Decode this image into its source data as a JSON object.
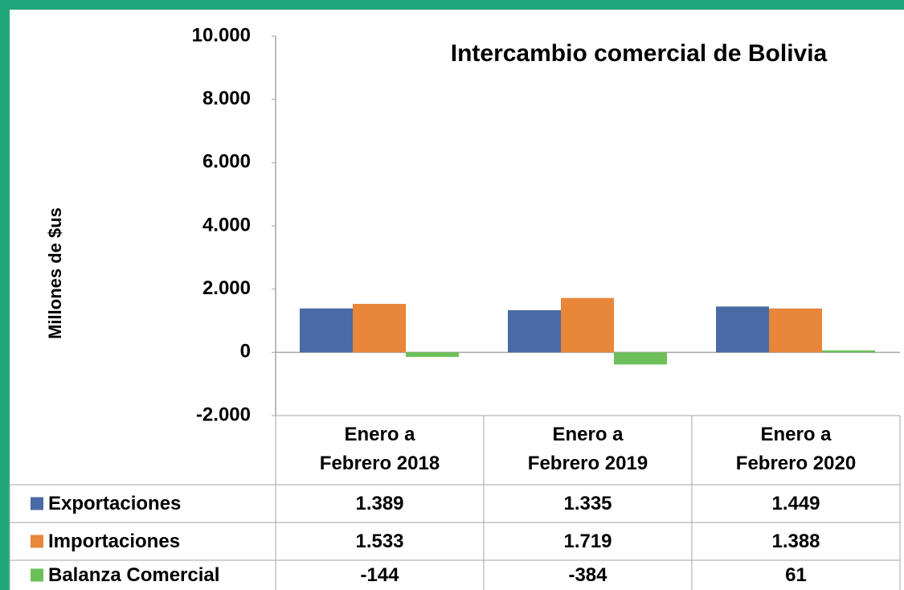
{
  "chart_data": {
    "type": "bar",
    "title": "Intercambio comercial de Bolivia",
    "y_label": "Millones de $us",
    "categories": [
      "Enero a\nFebrero 2018",
      "Enero a\nFebrero 2019",
      "Enero a\nFebrero 2020"
    ],
    "series": [
      {
        "name": "Exportaciones",
        "color": "#4a6aa5",
        "values": [
          1389,
          1335,
          1449
        ],
        "value_labels": [
          "1.389",
          "1.335",
          "1.449"
        ]
      },
      {
        "name": "Importaciones",
        "color": "#e8863a",
        "values": [
          1533,
          1719,
          1388
        ],
        "value_labels": [
          "1.533",
          "1.719",
          "1.388"
        ]
      },
      {
        "name": "Balanza Comercial",
        "color": "#6cbf5a",
        "values": [
          -144,
          -384,
          61
        ],
        "value_labels": [
          "-144",
          "-384",
          "61"
        ]
      }
    ],
    "ylim": [
      -2000,
      10000
    ],
    "yticks": [
      {
        "value": -2000,
        "label": "-2.000"
      },
      0,
      {
        "value": 2000,
        "label": "2.000"
      },
      {
        "value": 4000,
        "label": "4.000"
      },
      {
        "value": 6000,
        "label": "6.000"
      },
      {
        "value": 8000,
        "label": "8.000"
      },
      {
        "value": 10000,
        "label": "10.000"
      }
    ],
    "grid": false
  }
}
